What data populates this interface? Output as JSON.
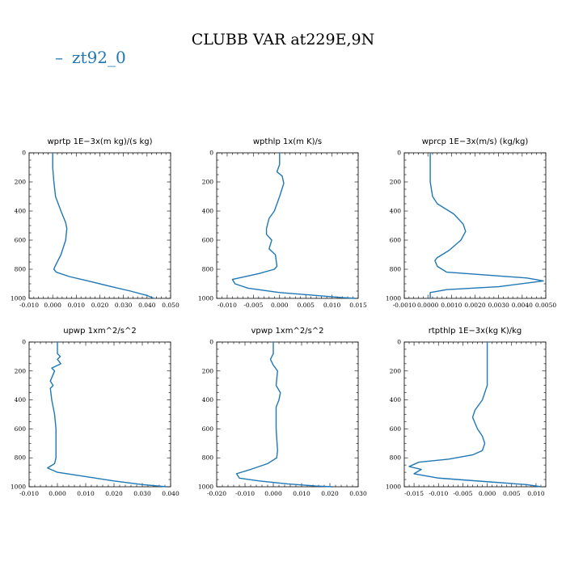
{
  "figure": {
    "title": "CLUBB VAR at229E,9N",
    "legend": {
      "label": "zt92_0",
      "dash": "–",
      "color": "#1f77b4"
    }
  },
  "chart_data": [
    {
      "type": "line",
      "title": "wprtp  1E−3x(m kg)/(s kg)",
      "xlim": [
        -0.01,
        0.05
      ],
      "ylim": [
        1000,
        0
      ],
      "xticks": [
        -0.01,
        0.0,
        0.01,
        0.02,
        0.03,
        0.04,
        0.05
      ],
      "xtick_labels": [
        "-0.010",
        "0.000",
        "0.010",
        "0.020",
        "0.030",
        "0.040",
        "0.050"
      ],
      "yticks": [
        0,
        200,
        400,
        600,
        800,
        1000
      ],
      "ytick_labels": [
        "0",
        "200",
        "400",
        "600",
        "800",
        "1000"
      ],
      "series": [
        {
          "name": "zt92_0",
          "x": [
            0.0,
            0.0,
            0.0005,
            0.0012,
            0.0035,
            0.0055,
            0.006,
            0.0055,
            0.0035,
            0.001,
            0.0005,
            0.0015,
            0.007,
            0.015,
            0.025,
            0.033,
            0.04,
            0.043
          ],
          "y": [
            0,
            100,
            200,
            300,
            400,
            480,
            520,
            600,
            700,
            780,
            800,
            820,
            850,
            880,
            920,
            950,
            980,
            1000
          ]
        }
      ]
    },
    {
      "type": "line",
      "title": "wpthlp  1x(m K)/s",
      "xlim": [
        -0.012,
        0.015
      ],
      "ylim": [
        1000,
        0
      ],
      "xticks": [
        -0.01,
        -0.005,
        0.0,
        0.005,
        0.01,
        0.015
      ],
      "xtick_labels": [
        "-0.010",
        "-0.005",
        "0.000",
        "0.005",
        "0.010",
        "0.015"
      ],
      "yticks": [
        0,
        200,
        400,
        600,
        800,
        1000
      ],
      "ytick_labels": [
        "0",
        "200",
        "400",
        "600",
        "800",
        "1000"
      ],
      "series": [
        {
          "name": "zt92_0",
          "x": [
            0.0,
            0.0,
            -0.0005,
            0.0005,
            0.0008,
            0.0,
            -0.001,
            -0.002,
            -0.0025,
            -0.0025,
            -0.0015,
            -0.002,
            -0.0008,
            -0.0005,
            -0.001,
            -0.004,
            -0.009,
            -0.0085,
            -0.006,
            0.0,
            0.007,
            0.012,
            0.0145
          ],
          "y": [
            0,
            80,
            130,
            160,
            210,
            300,
            400,
            450,
            520,
            560,
            600,
            660,
            700,
            780,
            800,
            830,
            870,
            900,
            930,
            960,
            980,
            995,
            1000
          ]
        }
      ]
    },
    {
      "type": "line",
      "title": "wprcp  1E−3x(m/s) (kg/kg)",
      "xlim": [
        -0.001,
        0.005
      ],
      "ylim": [
        1000,
        0
      ],
      "xticks": [
        -0.001,
        0.0,
        0.001,
        0.002,
        0.003,
        0.004,
        0.005
      ],
      "xtick_labels": [
        "-0.0010",
        "0.0000",
        "0.0010",
        "0.0020",
        "0.0030",
        "0.0040",
        "0.0050"
      ],
      "yticks": [
        0,
        200,
        400,
        600,
        800,
        1000
      ],
      "ytick_labels": [
        "0",
        "200",
        "400",
        "600",
        "800",
        "1000"
      ],
      "series": [
        {
          "name": "zt92_0",
          "x": [
            0.0001,
            0.0001,
            0.0002,
            0.0004,
            0.0011,
            0.0015,
            0.0016,
            0.0014,
            0.0009,
            0.0004,
            0.0003,
            0.0004,
            0.0008,
            0.0025,
            0.0042,
            0.0049,
            0.003,
            0.0008,
            0.0001,
            0.0001
          ],
          "y": [
            0,
            200,
            300,
            350,
            420,
            490,
            540,
            600,
            670,
            720,
            740,
            780,
            820,
            840,
            860,
            880,
            920,
            940,
            960,
            1000
          ]
        }
      ]
    },
    {
      "type": "line",
      "title": "upwp  1xm^2/s^2",
      "xlim": [
        -0.01,
        0.04
      ],
      "ylim": [
        1000,
        0
      ],
      "xticks": [
        -0.01,
        0.0,
        0.01,
        0.02,
        0.03,
        0.04
      ],
      "xtick_labels": [
        "-0.010",
        "0.000",
        "0.010",
        "0.020",
        "0.030",
        "0.040"
      ],
      "yticks": [
        0,
        200,
        400,
        600,
        800,
        1000
      ],
      "ytick_labels": [
        "0",
        "200",
        "400",
        "600",
        "800",
        "1000"
      ],
      "series": [
        {
          "name": "zt92_0",
          "x": [
            0.0,
            0.0,
            0.001,
            0.0,
            0.0012,
            -0.002,
            -0.001,
            -0.0025,
            -0.0015,
            -0.0025,
            -0.002,
            -0.001,
            -0.0005,
            -0.0005,
            -0.001,
            -0.0035,
            0.0,
            0.01,
            0.02,
            0.03,
            0.0385
          ],
          "y": [
            0,
            80,
            100,
            120,
            150,
            180,
            200,
            270,
            300,
            320,
            400,
            500,
            600,
            800,
            840,
            870,
            900,
            930,
            960,
            985,
            1000
          ]
        }
      ]
    },
    {
      "type": "line",
      "title": "vpwp  1xm^2/s^2",
      "xlim": [
        -0.02,
        0.03
      ],
      "ylim": [
        1000,
        0
      ],
      "xticks": [
        -0.02,
        -0.01,
        0.0,
        0.01,
        0.02,
        0.03
      ],
      "xtick_labels": [
        "-0.020",
        "-0.010",
        "0.000",
        "0.010",
        "0.020",
        "0.030"
      ],
      "yticks": [
        0,
        200,
        400,
        600,
        800,
        1000
      ],
      "ytick_labels": [
        "0",
        "200",
        "400",
        "600",
        "800",
        "1000"
      ],
      "series": [
        {
          "name": "zt92_0",
          "x": [
            0.0,
            0.0,
            -0.001,
            0.0,
            0.0015,
            0.001,
            0.0025,
            0.002,
            0.001,
            0.001,
            0.0015,
            0.0012,
            -0.002,
            -0.008,
            -0.013,
            -0.012,
            -0.005,
            0.005,
            0.015,
            0.021
          ],
          "y": [
            0,
            80,
            120,
            160,
            200,
            300,
            350,
            400,
            450,
            600,
            750,
            800,
            840,
            880,
            910,
            940,
            960,
            980,
            995,
            1000
          ]
        }
      ]
    },
    {
      "type": "line",
      "title": "rtpthlp  1E−3x(kg K)/kg",
      "xlim": [
        -0.017,
        0.012
      ],
      "ylim": [
        1000,
        0
      ],
      "xticks": [
        -0.015,
        -0.01,
        -0.005,
        0.0,
        0.005,
        0.01
      ],
      "xtick_labels": [
        "-0.015",
        "-0.010",
        "-0.005",
        "0.000",
        "0.005",
        "0.010"
      ],
      "yticks": [
        0,
        200,
        400,
        600,
        800,
        1000
      ],
      "ytick_labels": [
        "0",
        "200",
        "400",
        "600",
        "800",
        "1000"
      ],
      "series": [
        {
          "name": "zt92_0",
          "x": [
            0.0,
            0.0,
            0.0,
            -0.001,
            -0.0025,
            -0.003,
            -0.0025,
            -0.002,
            -0.001,
            -0.0005,
            -0.001,
            -0.003,
            -0.008,
            -0.014,
            -0.016,
            -0.0135,
            -0.015,
            -0.01,
            0.0,
            0.008,
            0.011
          ],
          "y": [
            0,
            200,
            300,
            400,
            470,
            520,
            560,
            600,
            650,
            700,
            750,
            780,
            810,
            830,
            860,
            880,
            910,
            940,
            965,
            985,
            1000
          ]
        }
      ]
    }
  ]
}
